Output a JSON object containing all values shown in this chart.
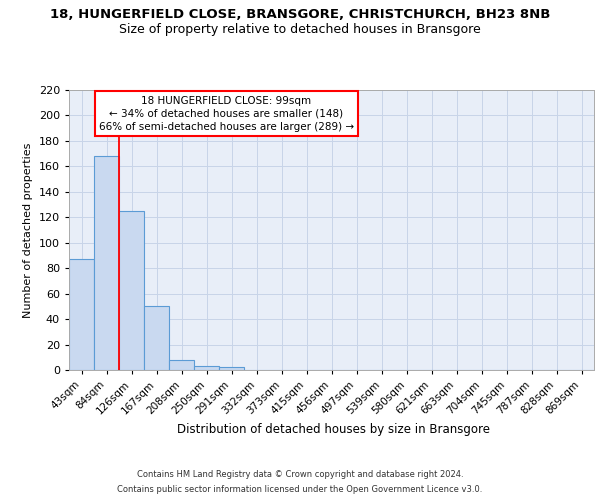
{
  "title1": "18, HUNGERFIELD CLOSE, BRANSGORE, CHRISTCHURCH, BH23 8NB",
  "title2": "Size of property relative to detached houses in Bransgore",
  "xlabel": "Distribution of detached houses by size in Bransgore",
  "ylabel": "Number of detached properties",
  "footnote1": "Contains HM Land Registry data © Crown copyright and database right 2024.",
  "footnote2": "Contains public sector information licensed under the Open Government Licence v3.0.",
  "categories": [
    "43sqm",
    "84sqm",
    "126sqm",
    "167sqm",
    "208sqm",
    "250sqm",
    "291sqm",
    "332sqm",
    "373sqm",
    "415sqm",
    "456sqm",
    "497sqm",
    "539sqm",
    "580sqm",
    "621sqm",
    "663sqm",
    "704sqm",
    "745sqm",
    "787sqm",
    "828sqm",
    "869sqm"
  ],
  "values": [
    87,
    168,
    125,
    50,
    8,
    3,
    2,
    0,
    0,
    0,
    0,
    0,
    0,
    0,
    0,
    0,
    0,
    0,
    0,
    0,
    0
  ],
  "bar_color": "#c9d9f0",
  "bar_edge_color": "#5b9bd5",
  "ylim_max": 220,
  "yticks": [
    0,
    20,
    40,
    60,
    80,
    100,
    120,
    140,
    160,
    180,
    200,
    220
  ],
  "red_line_x": 1.5,
  "annotation_line1": "18 HUNGERFIELD CLOSE: 99sqm",
  "annotation_line2": "← 34% of detached houses are smaller (148)",
  "annotation_line3": "66% of semi-detached houses are larger (289) →",
  "background_color": "#e8eef8",
  "grid_color": "#c8d4e8"
}
